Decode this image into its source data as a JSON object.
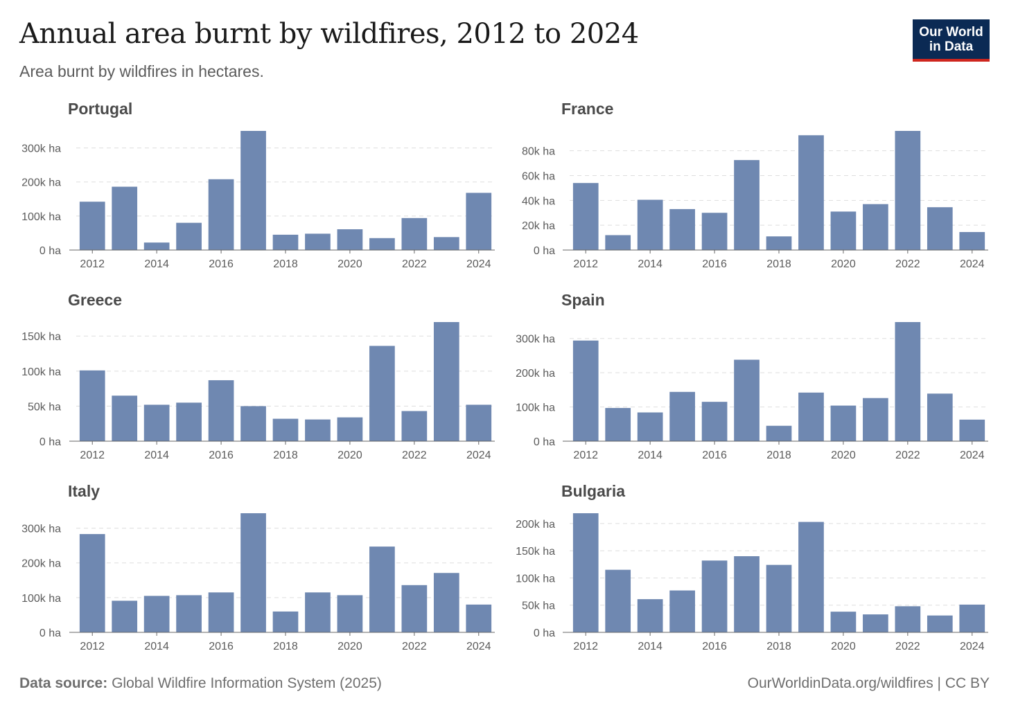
{
  "header": {
    "title": "Annual area burnt by wildfires, 2012 to 2024",
    "subtitle": "Area burnt by wildfires in hectares."
  },
  "logo": {
    "line1": "Our World",
    "line2": "in Data",
    "bg": "#0b2a54",
    "accent": "#ce261e"
  },
  "footer": {
    "source_label": "Data source:",
    "source_text": "Global Wildfire Information System (2025)",
    "right_text": "OurWorldinData.org/wildfires | CC BY"
  },
  "colors": {
    "bar": "#6f88b1",
    "grid": "#dddddd",
    "axis": "#666666"
  },
  "chart_data": [
    {
      "type": "bar",
      "title": "Portugal",
      "categories": [
        "2012",
        "2013",
        "2014",
        "2015",
        "2016",
        "2017",
        "2018",
        "2019",
        "2020",
        "2021",
        "2022",
        "2023",
        "2024"
      ],
      "x_tick_labels": [
        "2012",
        "2014",
        "2016",
        "2018",
        "2020",
        "2022",
        "2024"
      ],
      "values": [
        142000,
        186000,
        22000,
        80000,
        208000,
        350000,
        45000,
        48000,
        61000,
        35000,
        94000,
        38000,
        168000
      ],
      "ylim": [
        0,
        350000
      ],
      "y_ticks": [
        0,
        100000,
        200000,
        300000
      ],
      "y_tick_labels": [
        "0 ha",
        "100k ha",
        "200k ha",
        "300k ha"
      ]
    },
    {
      "type": "bar",
      "title": "France",
      "categories": [
        "2012",
        "2013",
        "2014",
        "2015",
        "2016",
        "2017",
        "2018",
        "2019",
        "2020",
        "2021",
        "2022",
        "2023",
        "2024"
      ],
      "x_tick_labels": [
        "2012",
        "2014",
        "2016",
        "2018",
        "2020",
        "2022",
        "2024"
      ],
      "values": [
        54000,
        12000,
        40500,
        33000,
        30000,
        72500,
        11000,
        92500,
        31000,
        37000,
        96000,
        34500,
        14500
      ],
      "ylim": [
        0,
        96000
      ],
      "y_ticks": [
        0,
        20000,
        40000,
        60000,
        80000
      ],
      "y_tick_labels": [
        "0 ha",
        "20k ha",
        "40k ha",
        "60k ha",
        "80k ha"
      ]
    },
    {
      "type": "bar",
      "title": "Greece",
      "categories": [
        "2012",
        "2013",
        "2014",
        "2015",
        "2016",
        "2017",
        "2018",
        "2019",
        "2020",
        "2021",
        "2022",
        "2023",
        "2024"
      ],
      "x_tick_labels": [
        "2012",
        "2014",
        "2016",
        "2018",
        "2020",
        "2022",
        "2024"
      ],
      "values": [
        101000,
        65000,
        52000,
        55000,
        87000,
        50000,
        32000,
        31000,
        34000,
        136000,
        43000,
        170000,
        52000
      ],
      "ylim": [
        0,
        170000
      ],
      "y_ticks": [
        0,
        50000,
        100000,
        150000
      ],
      "y_tick_labels": [
        "0 ha",
        "50k ha",
        "100k ha",
        "150k ha"
      ]
    },
    {
      "type": "bar",
      "title": "Spain",
      "categories": [
        "2012",
        "2013",
        "2014",
        "2015",
        "2016",
        "2017",
        "2018",
        "2019",
        "2020",
        "2021",
        "2022",
        "2023",
        "2024"
      ],
      "x_tick_labels": [
        "2012",
        "2014",
        "2016",
        "2018",
        "2020",
        "2022",
        "2024"
      ],
      "values": [
        294000,
        97000,
        84000,
        144000,
        115000,
        238000,
        45000,
        142000,
        104000,
        126000,
        348000,
        139000,
        63000
      ],
      "ylim": [
        0,
        348000
      ],
      "y_ticks": [
        0,
        100000,
        200000,
        300000
      ],
      "y_tick_labels": [
        "0 ha",
        "100k ha",
        "200k ha",
        "300k ha"
      ]
    },
    {
      "type": "bar",
      "title": "Italy",
      "categories": [
        "2012",
        "2013",
        "2014",
        "2015",
        "2016",
        "2017",
        "2018",
        "2019",
        "2020",
        "2021",
        "2022",
        "2023",
        "2024"
      ],
      "x_tick_labels": [
        "2012",
        "2014",
        "2016",
        "2018",
        "2020",
        "2022",
        "2024"
      ],
      "values": [
        283000,
        91000,
        105000,
        107000,
        115000,
        343000,
        60000,
        115000,
        107000,
        247000,
        136000,
        171000,
        80000
      ],
      "ylim": [
        0,
        343000
      ],
      "y_ticks": [
        0,
        100000,
        200000,
        300000
      ],
      "y_tick_labels": [
        "0 ha",
        "100k ha",
        "200k ha",
        "300k ha"
      ]
    },
    {
      "type": "bar",
      "title": "Bulgaria",
      "categories": [
        "2012",
        "2013",
        "2014",
        "2015",
        "2016",
        "2017",
        "2018",
        "2019",
        "2020",
        "2021",
        "2022",
        "2023",
        "2024"
      ],
      "x_tick_labels": [
        "2012",
        "2014",
        "2016",
        "2018",
        "2020",
        "2022",
        "2024"
      ],
      "values": [
        219000,
        115000,
        61000,
        77000,
        132000,
        140000,
        124000,
        203000,
        38000,
        33000,
        48000,
        31000,
        51000
      ],
      "ylim": [
        0,
        219000
      ],
      "y_ticks": [
        0,
        50000,
        100000,
        150000,
        200000
      ],
      "y_tick_labels": [
        "0 ha",
        "50k ha",
        "100k ha",
        "150k ha",
        "200k ha"
      ]
    }
  ]
}
